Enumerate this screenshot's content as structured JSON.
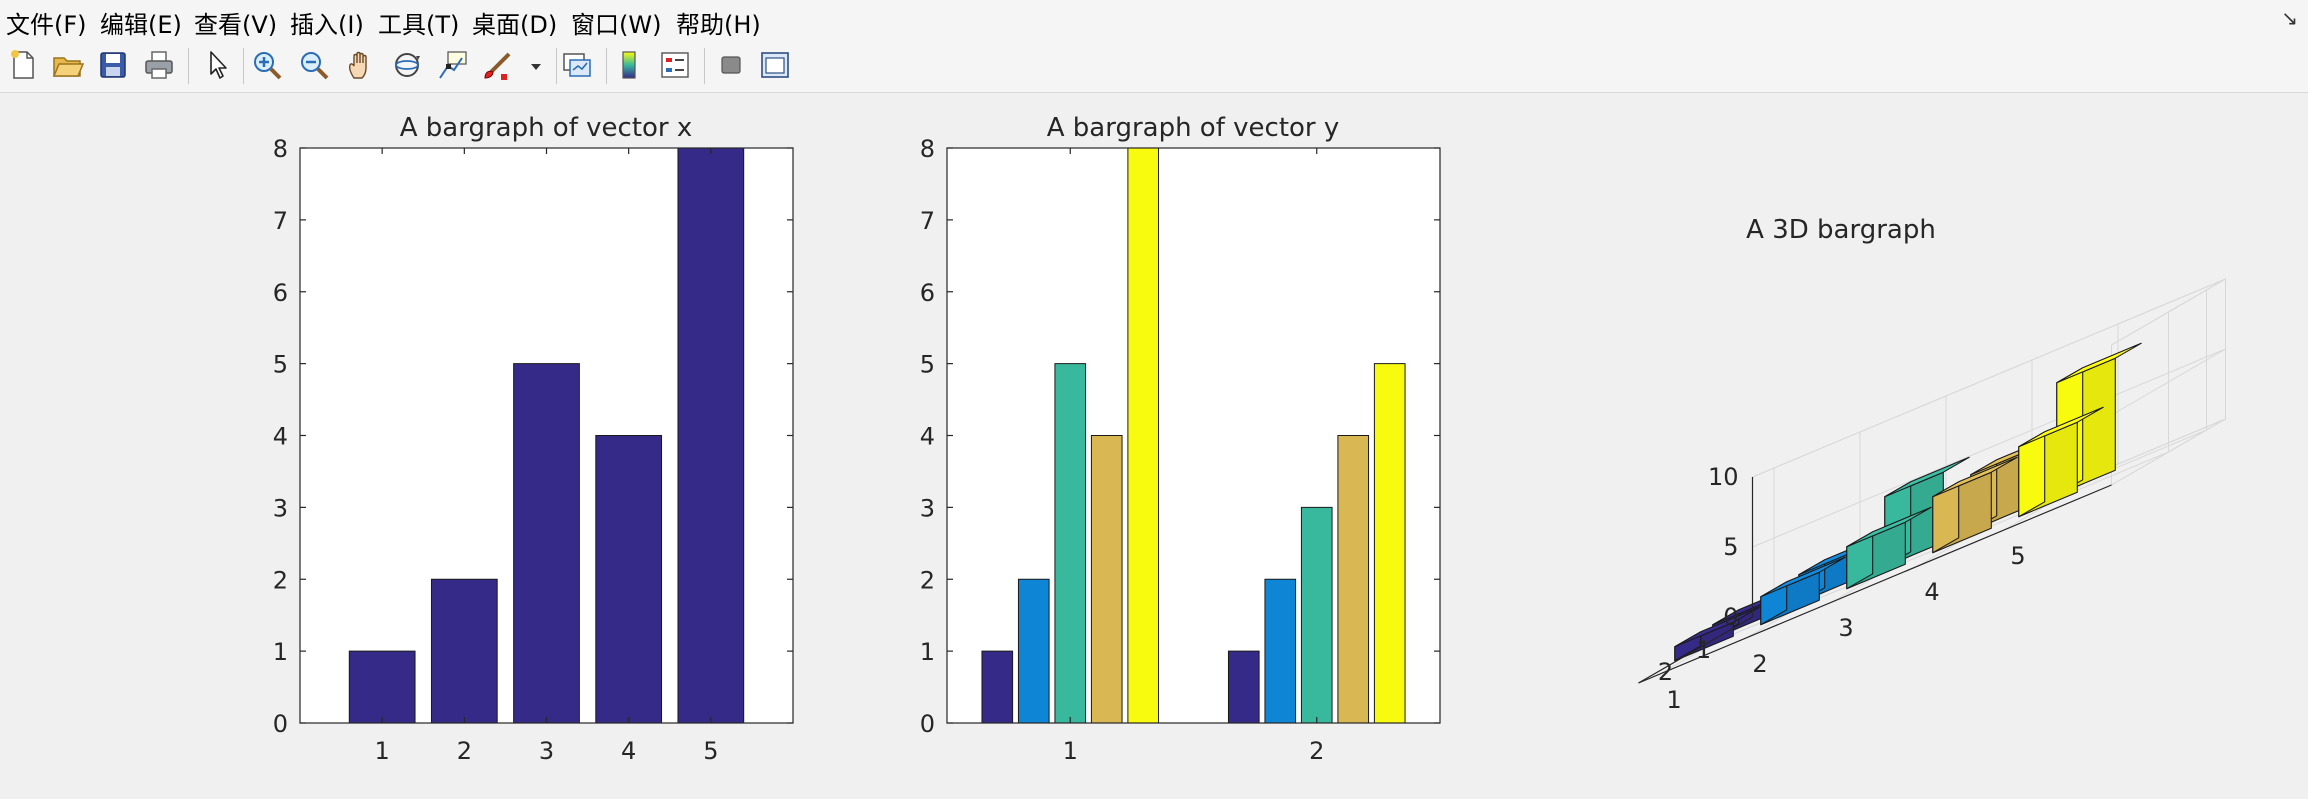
{
  "menu": {
    "items": [
      "文件(F)",
      "编辑(E)",
      "查看(V)",
      "插入(I)",
      "工具(T)",
      "桌面(D)",
      "窗口(W)",
      "帮助(H)"
    ]
  },
  "toolbar": {
    "buttons": [
      {
        "icon": "new-file-icon"
      },
      {
        "icon": "open-folder-icon"
      },
      {
        "icon": "save-icon"
      },
      {
        "icon": "print-icon"
      },
      {
        "icon": "pointer-icon"
      },
      {
        "icon": "zoom-in-icon"
      },
      {
        "icon": "zoom-out-icon"
      },
      {
        "icon": "pan-hand-icon"
      },
      {
        "icon": "rotate-3d-icon"
      },
      {
        "icon": "data-cursor-icon"
      },
      {
        "icon": "brush-icon"
      },
      {
        "icon": "link-plot-icon"
      },
      {
        "icon": "colorbar-icon"
      },
      {
        "icon": "legend-icon"
      },
      {
        "icon": "hide-plot-tools-icon"
      },
      {
        "icon": "show-plot-tools-icon"
      }
    ]
  },
  "colors": {
    "series": [
      "#352a87",
      "#0f85d6",
      "#38b99e",
      "#d9b753",
      "#f9fb0e"
    ]
  },
  "chart_data": [
    {
      "type": "bar",
      "title": "A bargraph of vector x",
      "categories": [
        "1",
        "2",
        "3",
        "4",
        "5"
      ],
      "values": [
        1,
        2,
        5,
        4,
        8
      ],
      "ylim": [
        0,
        8
      ],
      "yticks": [
        "0",
        "1",
        "2",
        "3",
        "4",
        "5",
        "6",
        "7",
        "8"
      ],
      "xlabel": "",
      "ylabel": ""
    },
    {
      "type": "bar",
      "title": "A bargraph of vector y",
      "categories": [
        "1",
        "2"
      ],
      "series": [
        {
          "values": [
            1,
            1
          ]
        },
        {
          "values": [
            2,
            2
          ]
        },
        {
          "values": [
            5,
            3
          ]
        },
        {
          "values": [
            4,
            4
          ]
        },
        {
          "values": [
            8,
            5
          ]
        }
      ],
      "ylim": [
        0,
        8
      ],
      "yticks": [
        "0",
        "1",
        "2",
        "3",
        "4",
        "5",
        "6",
        "7",
        "8"
      ],
      "xlabel": "",
      "ylabel": ""
    },
    {
      "type": "bar3",
      "title": "A 3D bargraph",
      "rows": [
        "1",
        "2"
      ],
      "columns": [
        "1",
        "2",
        "3",
        "4",
        "5"
      ],
      "values": [
        [
          1,
          2,
          5,
          4,
          8
        ],
        [
          1,
          2,
          3,
          4,
          5
        ]
      ],
      "zlim": [
        0,
        10
      ],
      "zticks": [
        "0",
        "5",
        "10"
      ]
    }
  ]
}
